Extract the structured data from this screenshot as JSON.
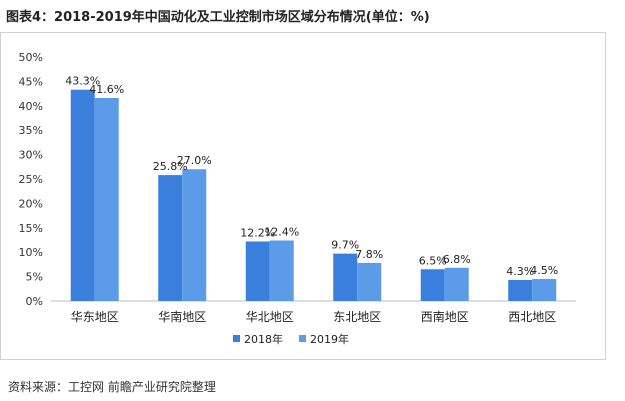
{
  "title": "图表4：2018-2019年中国动化及工业控制市场区域分布情况(单位：%)",
  "source": "资料来源：工控网 前瞻产业研究院整理",
  "chart_data": {
    "type": "bar",
    "categories": [
      "华东地区",
      "华南地区",
      "华北地区",
      "东北地区",
      "西南地区",
      "西北地区"
    ],
    "series": [
      {
        "name": "2018年",
        "values": [
          43.3,
          25.8,
          12.2,
          9.7,
          6.5,
          4.3
        ],
        "color": "#3a7fdc"
      },
      {
        "name": "2019年",
        "values": [
          41.6,
          27.0,
          12.4,
          7.8,
          6.8,
          4.5
        ],
        "color": "#5b9be8"
      }
    ],
    "value_labels": [
      [
        "43.3%",
        "25.8%",
        "12.2%",
        "9.7%",
        "6.5%",
        "4.3%"
      ],
      [
        "41.6%",
        "27.0%",
        "12.4%",
        "7.8%",
        "6.8%",
        "4.5%"
      ]
    ],
    "y_ticks": [
      "0%",
      "5%",
      "10%",
      "15%",
      "20%",
      "25%",
      "30%",
      "35%",
      "40%",
      "45%",
      "50%"
    ],
    "ylim": [
      0,
      50
    ],
    "grid": false,
    "legend_position": "bottom"
  }
}
